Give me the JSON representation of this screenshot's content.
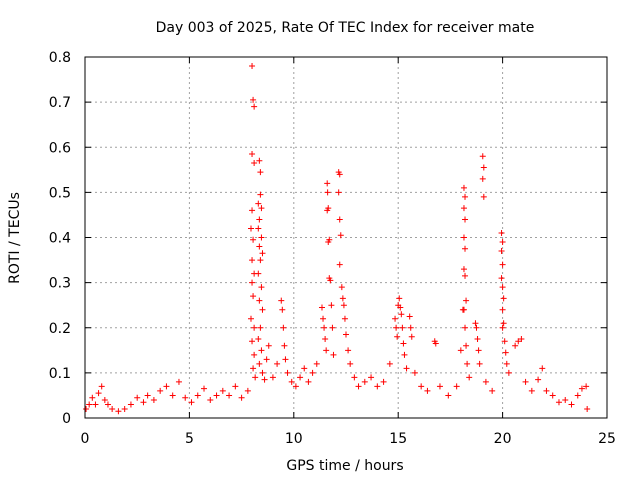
{
  "chart_data": {
    "type": "scatter",
    "title": "Day 003 of 2025, Rate Of TEC Index for receiver mate",
    "xlabel": "GPS time / hours",
    "ylabel": "ROTI / TECUs",
    "xlim": [
      0,
      25
    ],
    "ylim": [
      0,
      0.8
    ],
    "xticks": [
      0,
      5,
      10,
      15,
      20,
      25
    ],
    "xtick_labels": [
      "0",
      "5",
      "10",
      "15",
      "20",
      "25"
    ],
    "yticks": [
      0,
      0.1,
      0.2,
      0.3,
      0.4,
      0.5,
      0.6,
      0.7,
      0.8
    ],
    "ytick_labels": [
      "0",
      "0.1",
      "0.2",
      "0.3",
      "0.4",
      "0.5",
      "0.6",
      "0.7",
      "0.8"
    ],
    "grid": true,
    "marker": "+",
    "color": "#ff0000",
    "series": [
      {
        "points": [
          [
            0.05,
            0.02
          ],
          [
            0.2,
            0.03
          ],
          [
            0.35,
            0.045
          ],
          [
            0.5,
            0.03
          ],
          [
            0.65,
            0.055
          ],
          [
            0.8,
            0.07
          ],
          [
            0.95,
            0.04
          ],
          [
            1.1,
            0.03
          ],
          [
            1.3,
            0.02
          ],
          [
            1.6,
            0.015
          ],
          [
            1.9,
            0.02
          ],
          [
            2.2,
            0.03
          ],
          [
            2.5,
            0.045
          ],
          [
            2.8,
            0.035
          ],
          [
            3.0,
            0.05
          ],
          [
            3.3,
            0.04
          ],
          [
            3.6,
            0.06
          ],
          [
            3.9,
            0.07
          ],
          [
            4.2,
            0.05
          ],
          [
            4.5,
            0.08
          ],
          [
            4.8,
            0.045
          ],
          [
            5.1,
            0.035
          ],
          [
            5.4,
            0.05
          ],
          [
            5.7,
            0.065
          ],
          [
            6.0,
            0.04
          ],
          [
            6.3,
            0.05
          ],
          [
            6.6,
            0.06
          ],
          [
            6.9,
            0.05
          ],
          [
            7.2,
            0.07
          ],
          [
            7.5,
            0.045
          ],
          [
            7.8,
            0.06
          ],
          [
            8.0,
            0.78
          ],
          [
            8.05,
            0.705
          ],
          [
            8.1,
            0.69
          ],
          [
            8.0,
            0.585
          ],
          [
            8.1,
            0.565
          ],
          [
            8.0,
            0.46
          ],
          [
            7.95,
            0.42
          ],
          [
            8.05,
            0.395
          ],
          [
            8.0,
            0.35
          ],
          [
            8.1,
            0.32
          ],
          [
            8.0,
            0.3
          ],
          [
            8.05,
            0.27
          ],
          [
            7.95,
            0.22
          ],
          [
            8.1,
            0.2
          ],
          [
            8.0,
            0.17
          ],
          [
            8.1,
            0.14
          ],
          [
            8.05,
            0.11
          ],
          [
            8.15,
            0.09
          ],
          [
            8.35,
            0.57
          ],
          [
            8.4,
            0.545
          ],
          [
            8.4,
            0.495
          ],
          [
            8.3,
            0.475
          ],
          [
            8.45,
            0.465
          ],
          [
            8.35,
            0.44
          ],
          [
            8.3,
            0.42
          ],
          [
            8.45,
            0.4
          ],
          [
            8.35,
            0.38
          ],
          [
            8.5,
            0.365
          ],
          [
            8.4,
            0.35
          ],
          [
            8.3,
            0.32
          ],
          [
            8.45,
            0.29
          ],
          [
            8.35,
            0.26
          ],
          [
            8.5,
            0.24
          ],
          [
            8.4,
            0.2
          ],
          [
            8.3,
            0.175
          ],
          [
            8.45,
            0.15
          ],
          [
            8.35,
            0.12
          ],
          [
            8.5,
            0.1
          ],
          [
            8.6,
            0.085
          ],
          [
            8.7,
            0.13
          ],
          [
            8.8,
            0.16
          ],
          [
            9.0,
            0.09
          ],
          [
            9.2,
            0.12
          ],
          [
            9.4,
            0.26
          ],
          [
            9.45,
            0.24
          ],
          [
            9.5,
            0.2
          ],
          [
            9.55,
            0.16
          ],
          [
            9.6,
            0.13
          ],
          [
            9.7,
            0.1
          ],
          [
            9.9,
            0.08
          ],
          [
            10.1,
            0.07
          ],
          [
            10.3,
            0.09
          ],
          [
            10.5,
            0.11
          ],
          [
            10.7,
            0.08
          ],
          [
            10.9,
            0.1
          ],
          [
            11.1,
            0.12
          ],
          [
            11.35,
            0.245
          ],
          [
            11.4,
            0.22
          ],
          [
            11.45,
            0.2
          ],
          [
            11.5,
            0.175
          ],
          [
            11.55,
            0.15
          ],
          [
            11.6,
            0.52
          ],
          [
            11.62,
            0.5
          ],
          [
            11.65,
            0.465
          ],
          [
            11.6,
            0.46
          ],
          [
            11.7,
            0.395
          ],
          [
            11.65,
            0.39
          ],
          [
            11.7,
            0.31
          ],
          [
            11.75,
            0.305
          ],
          [
            11.8,
            0.25
          ],
          [
            11.85,
            0.2
          ],
          [
            11.9,
            0.14
          ],
          [
            12.15,
            0.545
          ],
          [
            12.2,
            0.54
          ],
          [
            12.15,
            0.5
          ],
          [
            12.2,
            0.44
          ],
          [
            12.25,
            0.405
          ],
          [
            12.2,
            0.34
          ],
          [
            12.3,
            0.29
          ],
          [
            12.35,
            0.265
          ],
          [
            12.4,
            0.25
          ],
          [
            12.45,
            0.22
          ],
          [
            12.5,
            0.185
          ],
          [
            12.6,
            0.15
          ],
          [
            12.7,
            0.12
          ],
          [
            12.9,
            0.09
          ],
          [
            13.1,
            0.07
          ],
          [
            13.4,
            0.08
          ],
          [
            13.7,
            0.09
          ],
          [
            14.0,
            0.07
          ],
          [
            14.3,
            0.08
          ],
          [
            14.6,
            0.12
          ],
          [
            14.85,
            0.22
          ],
          [
            14.9,
            0.2
          ],
          [
            14.95,
            0.18
          ],
          [
            15.0,
            0.25
          ],
          [
            15.05,
            0.265
          ],
          [
            15.1,
            0.245
          ],
          [
            15.15,
            0.23
          ],
          [
            15.2,
            0.2
          ],
          [
            15.25,
            0.165
          ],
          [
            15.3,
            0.14
          ],
          [
            15.4,
            0.11
          ],
          [
            15.55,
            0.225
          ],
          [
            15.6,
            0.2
          ],
          [
            15.65,
            0.18
          ],
          [
            15.8,
            0.1
          ],
          [
            16.1,
            0.07
          ],
          [
            16.4,
            0.06
          ],
          [
            16.75,
            0.17
          ],
          [
            16.8,
            0.165
          ],
          [
            17.0,
            0.07
          ],
          [
            17.4,
            0.05
          ],
          [
            17.8,
            0.07
          ],
          [
            18.0,
            0.15
          ],
          [
            18.1,
            0.24
          ],
          [
            18.15,
            0.51
          ],
          [
            18.2,
            0.49
          ],
          [
            18.15,
            0.465
          ],
          [
            18.2,
            0.44
          ],
          [
            18.15,
            0.4
          ],
          [
            18.2,
            0.375
          ],
          [
            18.15,
            0.33
          ],
          [
            18.2,
            0.315
          ],
          [
            18.25,
            0.26
          ],
          [
            18.15,
            0.24
          ],
          [
            18.2,
            0.2
          ],
          [
            18.25,
            0.16
          ],
          [
            18.3,
            0.12
          ],
          [
            18.4,
            0.09
          ],
          [
            18.7,
            0.21
          ],
          [
            18.75,
            0.2
          ],
          [
            18.8,
            0.175
          ],
          [
            18.85,
            0.15
          ],
          [
            18.9,
            0.12
          ],
          [
            19.05,
            0.58
          ],
          [
            19.1,
            0.555
          ],
          [
            19.05,
            0.53
          ],
          [
            19.1,
            0.49
          ],
          [
            19.2,
            0.08
          ],
          [
            19.5,
            0.06
          ],
          [
            19.95,
            0.41
          ],
          [
            20.0,
            0.39
          ],
          [
            19.95,
            0.37
          ],
          [
            20.0,
            0.34
          ],
          [
            19.95,
            0.31
          ],
          [
            20.0,
            0.29
          ],
          [
            20.05,
            0.265
          ],
          [
            20.0,
            0.24
          ],
          [
            20.05,
            0.21
          ],
          [
            20.0,
            0.2
          ],
          [
            20.1,
            0.17
          ],
          [
            20.15,
            0.145
          ],
          [
            20.2,
            0.12
          ],
          [
            20.3,
            0.1
          ],
          [
            20.6,
            0.16
          ],
          [
            20.75,
            0.17
          ],
          [
            20.9,
            0.175
          ],
          [
            21.1,
            0.08
          ],
          [
            21.4,
            0.06
          ],
          [
            21.7,
            0.085
          ],
          [
            21.9,
            0.11
          ],
          [
            22.1,
            0.06
          ],
          [
            22.4,
            0.05
          ],
          [
            22.7,
            0.035
          ],
          [
            23.0,
            0.04
          ],
          [
            23.3,
            0.03
          ],
          [
            23.6,
            0.05
          ],
          [
            23.8,
            0.065
          ],
          [
            24.0,
            0.07
          ],
          [
            24.05,
            0.02
          ]
        ]
      }
    ]
  }
}
